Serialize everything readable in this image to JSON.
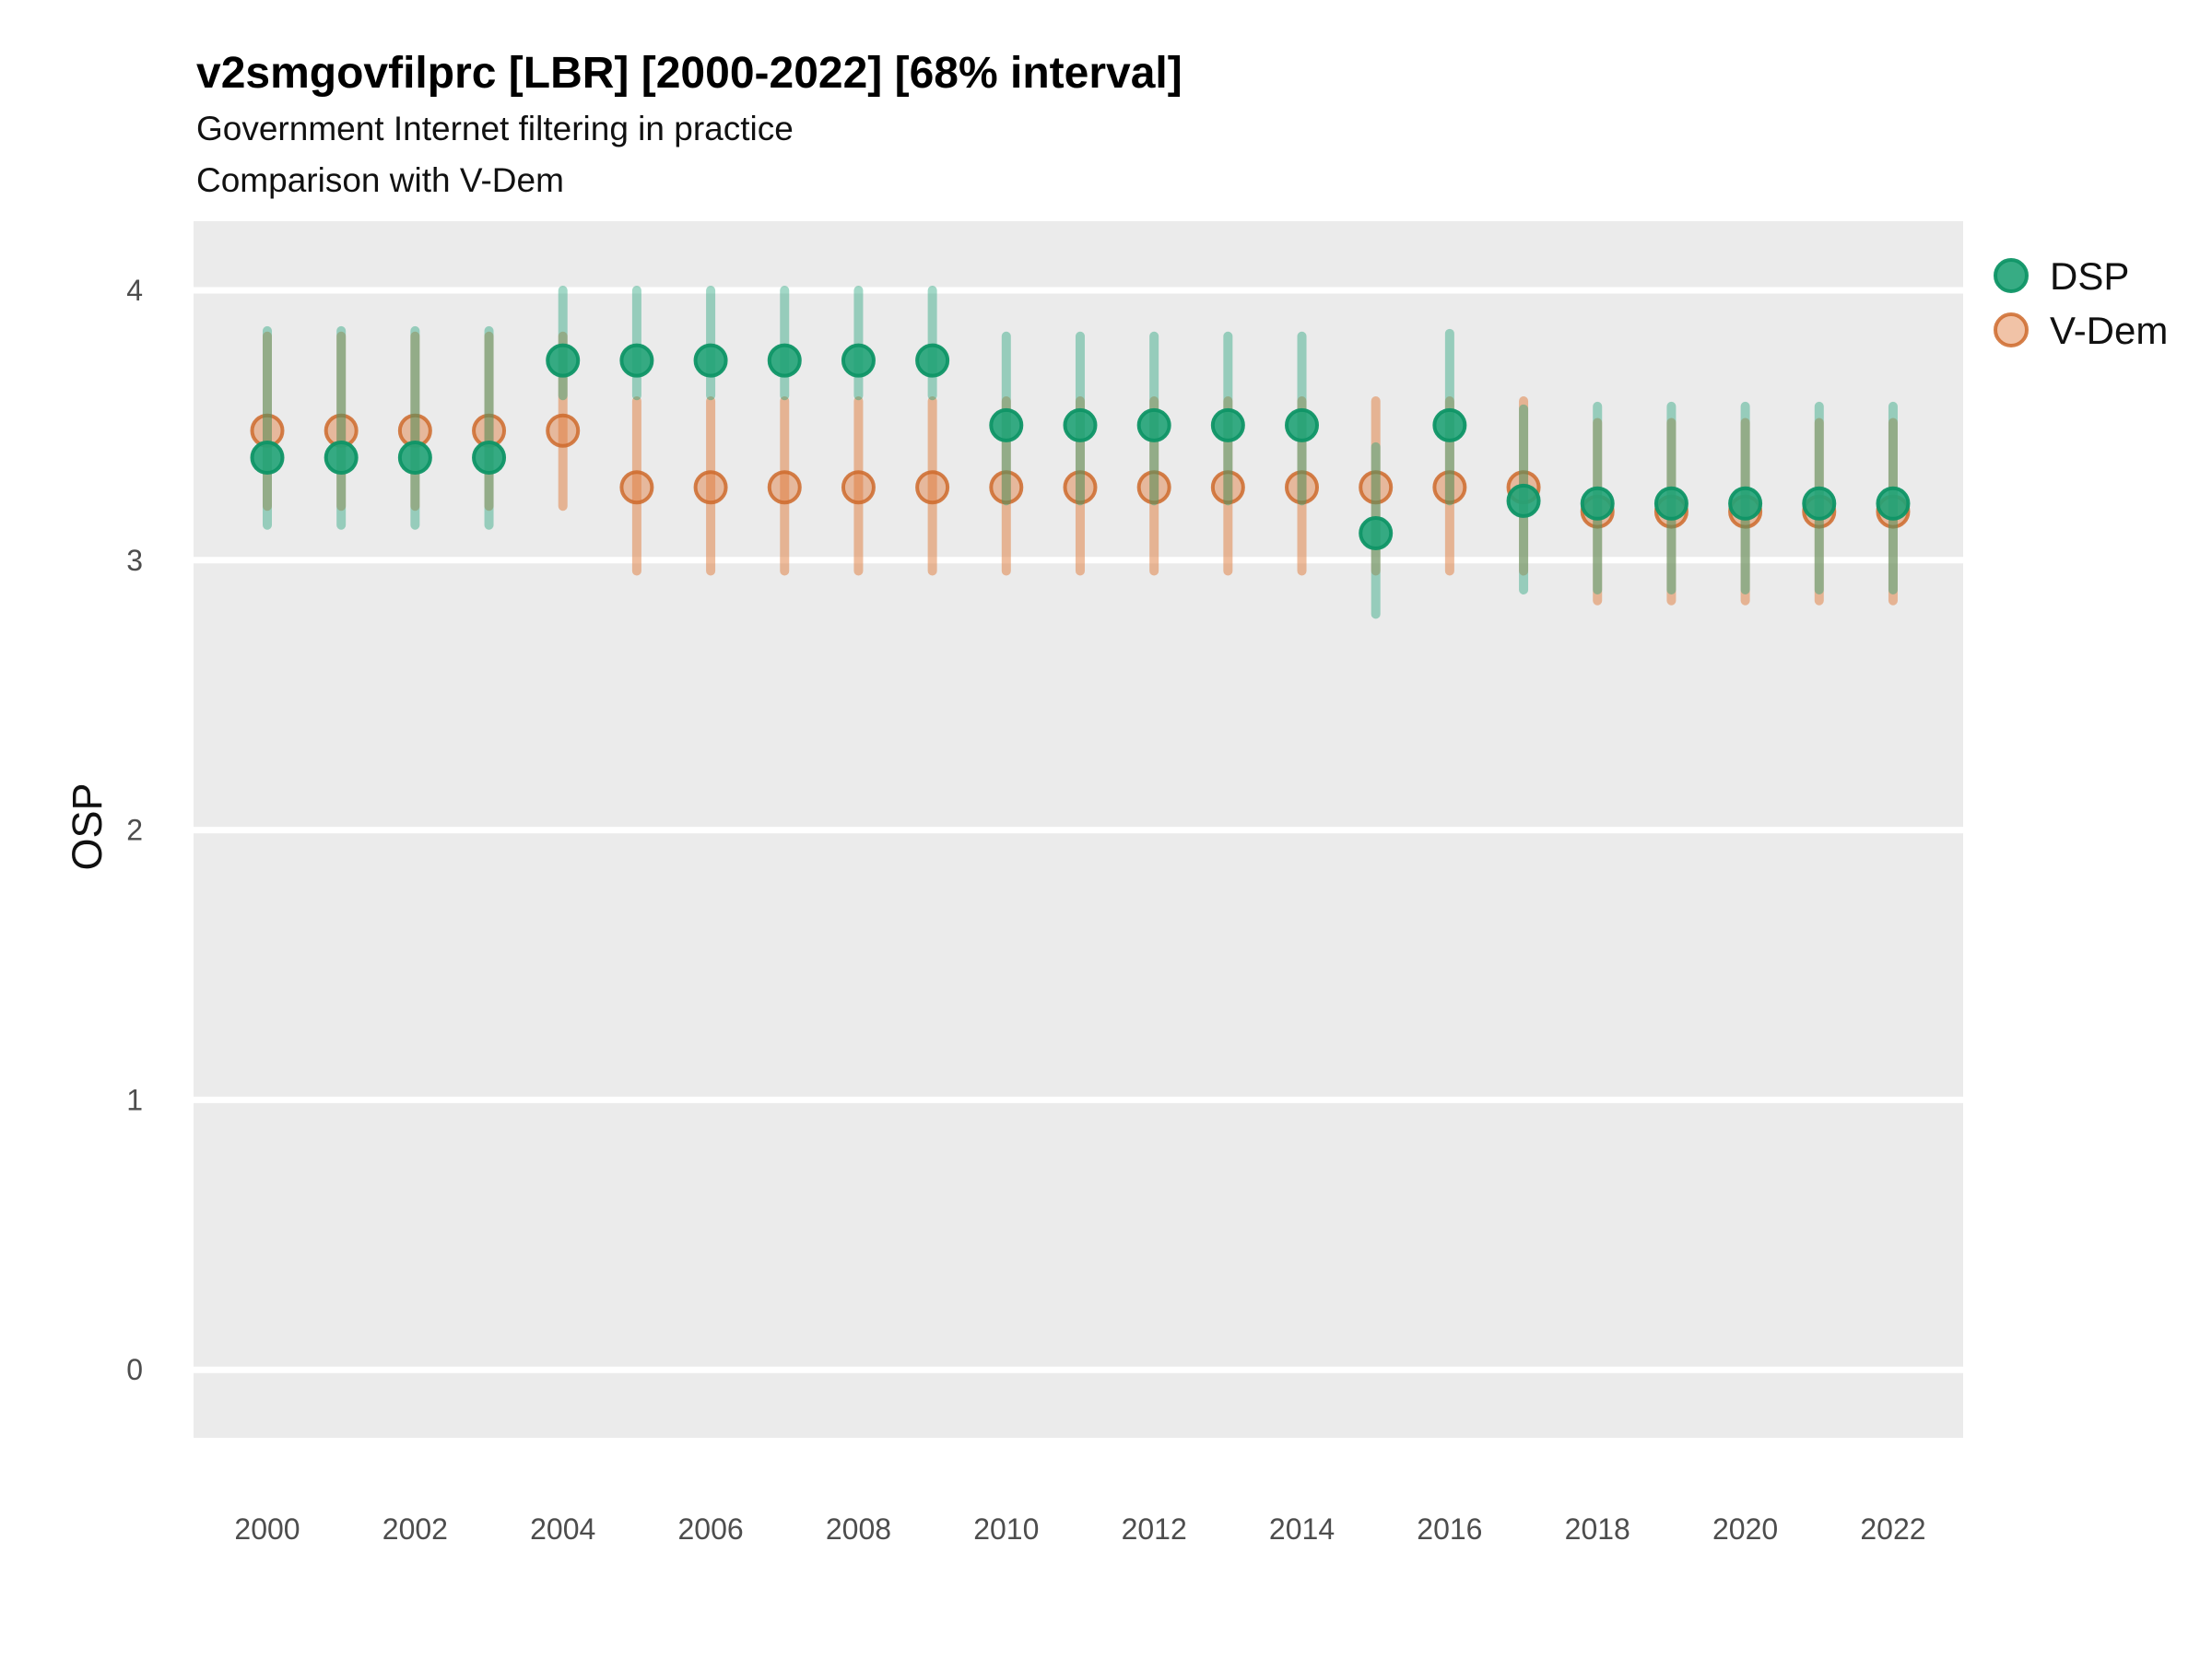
{
  "chart_data": {
    "type": "pointrange-scatter",
    "title": "v2smgovfilprc [LBR] [2000-2022] [68% interval]",
    "subtitle": [
      "Government Internet filtering in practice",
      "Comparison with V-Dem"
    ],
    "ylabel": "OSP",
    "xlabel": "",
    "interval_note": "68% interval",
    "legend_position": "right",
    "grid": "horizontal major gridlines only, white on grey panel",
    "panel_bg": "#EBEBEB",
    "gridline_color": "#FFFFFF",
    "ylim": [
      -0.25,
      4.26
    ],
    "y_ticks": [
      0,
      1,
      2,
      3,
      4
    ],
    "x_ticks": [
      2000,
      2002,
      2004,
      2006,
      2008,
      2010,
      2012,
      2014,
      2016,
      2018,
      2020,
      2022
    ],
    "years": [
      2000,
      2001,
      2002,
      2003,
      2004,
      2005,
      2006,
      2007,
      2008,
      2009,
      2010,
      2011,
      2012,
      2013,
      2014,
      2015,
      2016,
      2017,
      2018,
      2019,
      2020,
      2021,
      2022
    ],
    "series": [
      {
        "name": "DSP",
        "color": "#21A179",
        "line_color": "rgba(33,161,121,0.42)",
        "dot_fill": "rgba(33,163,119,0.9)",
        "dot_stroke": "rgba(15,149,102,0.95)",
        "values": [
          3.38,
          3.38,
          3.38,
          3.38,
          3.74,
          3.74,
          3.74,
          3.74,
          3.74,
          3.74,
          3.5,
          3.5,
          3.5,
          3.5,
          3.5,
          3.1,
          3.5,
          3.22,
          3.21,
          3.21,
          3.21,
          3.21,
          3.21
        ],
        "lo": [
          3.13,
          3.13,
          3.13,
          3.13,
          3.61,
          3.61,
          3.61,
          3.61,
          3.61,
          3.61,
          3.22,
          3.22,
          3.22,
          3.22,
          3.22,
          2.8,
          3.22,
          2.89,
          2.89,
          2.89,
          2.89,
          2.89,
          2.89
        ],
        "hi": [
          3.85,
          3.85,
          3.85,
          3.85,
          4.0,
          4.0,
          4.0,
          4.0,
          4.0,
          4.0,
          3.83,
          3.83,
          3.83,
          3.83,
          3.83,
          3.42,
          3.84,
          3.56,
          3.57,
          3.57,
          3.57,
          3.57,
          3.57
        ]
      },
      {
        "name": "V-Dem",
        "color": "#E07B3C",
        "line_color": "rgba(224,123,60,0.5)",
        "dot_fill": "rgba(224,123,60,0.45)",
        "dot_stroke": "rgba(206,106,44,0.85)",
        "values": [
          3.48,
          3.48,
          3.48,
          3.48,
          3.48,
          3.27,
          3.27,
          3.27,
          3.27,
          3.27,
          3.27,
          3.27,
          3.27,
          3.27,
          3.27,
          3.27,
          3.27,
          3.27,
          3.18,
          3.18,
          3.18,
          3.18,
          3.18
        ],
        "lo": [
          3.2,
          3.2,
          3.2,
          3.2,
          3.2,
          2.96,
          2.96,
          2.96,
          2.96,
          2.96,
          2.96,
          2.96,
          2.96,
          2.96,
          2.96,
          2.96,
          2.96,
          2.96,
          2.85,
          2.85,
          2.85,
          2.85,
          2.85
        ],
        "hi": [
          3.83,
          3.83,
          3.83,
          3.83,
          3.83,
          3.59,
          3.59,
          3.59,
          3.59,
          3.59,
          3.59,
          3.59,
          3.59,
          3.59,
          3.59,
          3.59,
          3.59,
          3.59,
          3.51,
          3.51,
          3.51,
          3.51,
          3.51
        ]
      }
    ]
  }
}
